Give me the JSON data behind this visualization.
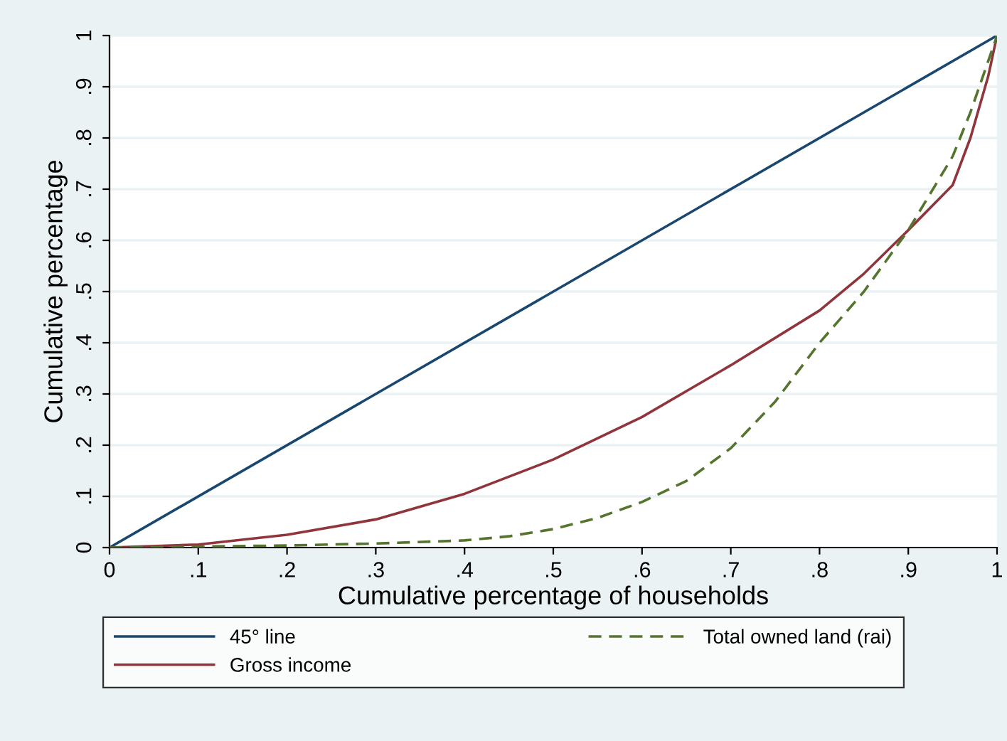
{
  "chart_data": {
    "type": "line",
    "xlabel": "Cumulative percentage of households",
    "ylabel": "Cumulative percentage",
    "xlim": [
      0,
      1
    ],
    "ylim": [
      0,
      1
    ],
    "xticks": [
      0,
      {
        "value": 0.1,
        "label": ".1"
      },
      {
        "value": 0.2,
        "label": ".2"
      },
      {
        "value": 0.3,
        "label": ".3"
      },
      {
        "value": 0.4,
        "label": ".4"
      },
      {
        "value": 0.5,
        "label": ".5"
      },
      {
        "value": 0.6,
        "label": ".6"
      },
      {
        "value": 0.7,
        "label": ".7"
      },
      {
        "value": 0.8,
        "label": ".8"
      },
      {
        "value": 0.9,
        "label": ".9"
      },
      1
    ],
    "yticks": [
      0,
      {
        "value": 0.1,
        "label": ".1"
      },
      {
        "value": 0.2,
        "label": ".2"
      },
      {
        "value": 0.3,
        "label": ".3"
      },
      {
        "value": 0.4,
        "label": ".4"
      },
      {
        "value": 0.5,
        "label": ".5"
      },
      {
        "value": 0.6,
        "label": ".6"
      },
      {
        "value": 0.7,
        "label": ".7"
      },
      {
        "value": 0.8,
        "label": ".8"
      },
      {
        "value": 0.9,
        "label": ".9"
      },
      1
    ],
    "grid": "y",
    "legend": "bottom",
    "series": [
      {
        "name": "45° line",
        "color": "#1a476f",
        "line_style": "solid",
        "x": [
          0,
          1
        ],
        "values": [
          0,
          1
        ]
      },
      {
        "name": "Gross income",
        "color": "#90353b",
        "line_style": "solid",
        "x": [
          0,
          0.1,
          0.2,
          0.3,
          0.4,
          0.5,
          0.6,
          0.7,
          0.8,
          0.85,
          0.9,
          0.95,
          0.97,
          0.99,
          1
        ],
        "values": [
          0,
          0.006,
          0.025,
          0.055,
          0.105,
          0.172,
          0.255,
          0.356,
          0.463,
          0.535,
          0.62,
          0.708,
          0.8,
          0.92,
          1
        ]
      },
      {
        "name": "Total owned land (rai)",
        "color": "#55752f",
        "line_style": "dashed",
        "x": [
          0,
          0.1,
          0.2,
          0.3,
          0.4,
          0.45,
          0.5,
          0.55,
          0.6,
          0.65,
          0.7,
          0.75,
          0.8,
          0.85,
          0.9,
          0.95,
          0.97,
          1
        ],
        "values": [
          0,
          0.002,
          0.004,
          0.008,
          0.014,
          0.022,
          0.036,
          0.058,
          0.089,
          0.13,
          0.194,
          0.285,
          0.4,
          0.5,
          0.62,
          0.764,
          0.85,
          1
        ]
      }
    ]
  }
}
